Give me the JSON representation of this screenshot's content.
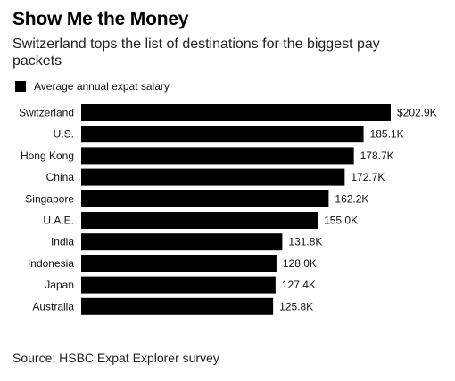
{
  "header": {
    "title": "Show Me the Money",
    "subtitle": "Switzerland tops the list of destinations for the biggest pay packets"
  },
  "legend": {
    "label": "Average annual expat salary",
    "swatch_color": "#000000"
  },
  "source": "Source: HSBC Expat Explorer survey",
  "chart_data": {
    "type": "bar",
    "orientation": "horizontal",
    "title": "Show Me the Money",
    "subtitle": "Switzerland tops the list of destinations for the biggest pay packets",
    "categories": [
      "Switzerland",
      "U.S.",
      "Hong Kong",
      "China",
      "Singapore",
      "U.A.E.",
      "India",
      "Indonesia",
      "Japan",
      "Australia"
    ],
    "values": [
      202.9,
      185.1,
      178.7,
      172.7,
      162.2,
      155.0,
      131.8,
      128.0,
      127.4,
      125.8
    ],
    "value_labels": [
      "$202.9K",
      "185.1K",
      "178.7K",
      "172.7K",
      "162.2K",
      "155.0K",
      "131.8K",
      "128.0K",
      "127.4K",
      "125.8K"
    ],
    "unit": "thousand USD",
    "series": [
      {
        "name": "Average annual expat salary",
        "values": [
          202.9,
          185.1,
          178.7,
          172.7,
          162.2,
          155.0,
          131.8,
          128.0,
          127.4,
          125.8
        ]
      }
    ],
    "xlim": [
      0,
      202.9
    ],
    "bar_color": "#000000",
    "grid": false,
    "legend_position": "top-left"
  }
}
